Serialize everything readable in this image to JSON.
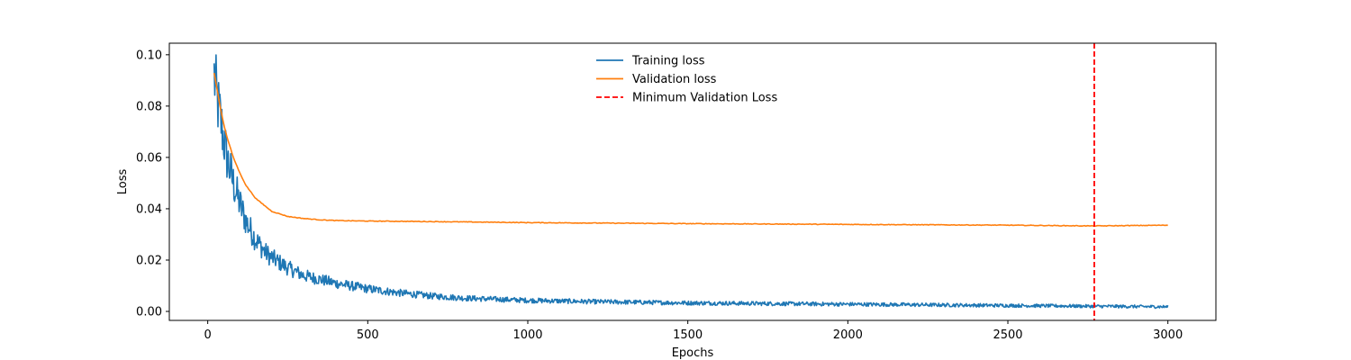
{
  "chart_data": {
    "type": "line",
    "title": "",
    "xlabel": "Epochs",
    "ylabel": "Loss",
    "xlim": [
      -120,
      3150
    ],
    "ylim": [
      -0.0035,
      0.1045
    ],
    "xticks": [
      0,
      500,
      1000,
      1500,
      2000,
      2500,
      3000
    ],
    "xtick_labels": [
      "0",
      "500",
      "1000",
      "1500",
      "2000",
      "2500",
      "3000"
    ],
    "yticks": [
      0.0,
      0.02,
      0.04,
      0.06,
      0.08,
      0.1
    ],
    "ytick_labels": [
      "0.00",
      "0.02",
      "0.04",
      "0.06",
      "0.08",
      "0.10"
    ],
    "grid": false,
    "legend_position": "top-center",
    "series": [
      {
        "name": "Training loss",
        "color": "#1f77b4",
        "style": "solid",
        "noisy": true,
        "x": [
          20,
          30,
          40,
          50,
          60,
          80,
          100,
          120,
          150,
          180,
          200,
          250,
          300,
          350,
          400,
          500,
          600,
          700,
          800,
          1000,
          1200,
          1500,
          1800,
          2000,
          2200,
          2500,
          2700,
          2770,
          2800,
          3000
        ],
        "y": [
          0.092,
          0.082,
          0.075,
          0.067,
          0.06,
          0.05,
          0.042,
          0.035,
          0.028,
          0.023,
          0.021,
          0.017,
          0.014,
          0.0125,
          0.011,
          0.0088,
          0.0072,
          0.006,
          0.0052,
          0.0043,
          0.0038,
          0.0033,
          0.003,
          0.0028,
          0.0026,
          0.0023,
          0.0021,
          0.002,
          0.002,
          0.0018
        ]
      },
      {
        "name": "Validation loss",
        "color": "#ff7f0e",
        "style": "solid",
        "noisy": false,
        "x": [
          20,
          30,
          40,
          50,
          60,
          80,
          100,
          120,
          150,
          180,
          200,
          250,
          300,
          350,
          400,
          500,
          700,
          1000,
          1500,
          2000,
          2500,
          2770,
          3000
        ],
        "y": [
          0.093,
          0.086,
          0.079,
          0.073,
          0.068,
          0.06,
          0.054,
          0.049,
          0.044,
          0.041,
          0.039,
          0.037,
          0.0362,
          0.0357,
          0.0354,
          0.0352,
          0.035,
          0.0346,
          0.0342,
          0.0339,
          0.0336,
          0.0333,
          0.0336
        ]
      },
      {
        "name": "Minimum Validation Loss",
        "color": "#ff0000",
        "style": "dashed",
        "vline_x": 2770
      }
    ]
  }
}
